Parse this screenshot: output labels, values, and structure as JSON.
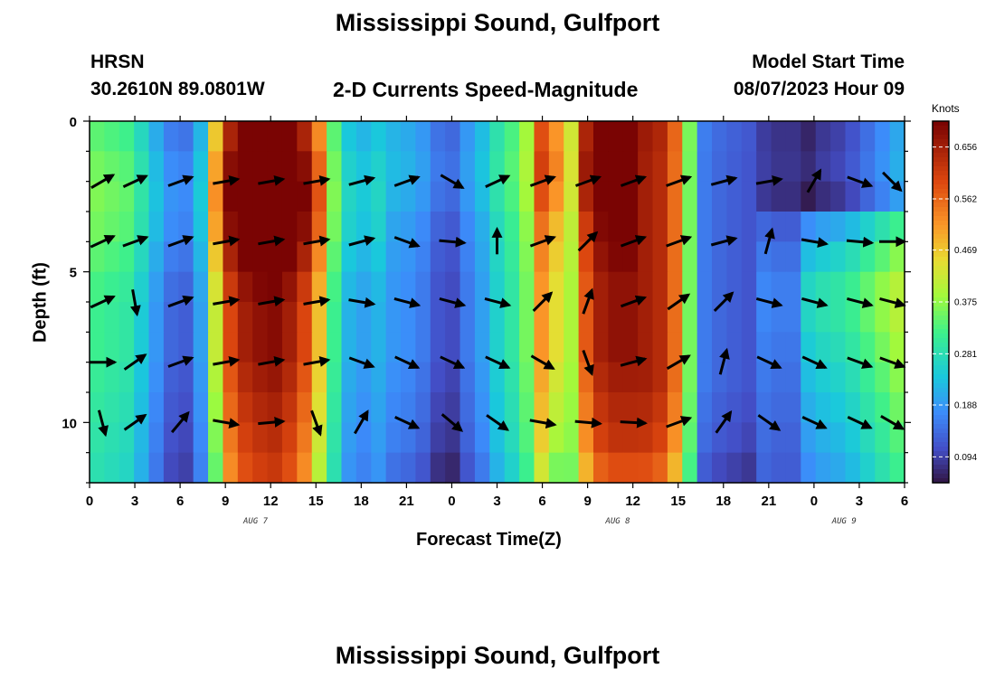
{
  "header": {
    "title": "Mississippi Sound, Gulfport",
    "station_id": "HRSN",
    "coords": "30.2610N  89.0801W",
    "subtitle": "2-D Currents Speed-Magnitude",
    "model_label": "Model Start Time",
    "model_time": "08/07/2023 Hour 09",
    "footer_title": "Mississippi Sound, Gulfport"
  },
  "chart_data": {
    "type": "heatmap",
    "title": "Mississippi Sound, Gulfport",
    "subtitle": "2-D Currents Speed-Magnitude",
    "xlabel": "Forecast Time(Z)",
    "ylabel": "Depth (ft)",
    "colorbar_label": "Knots",
    "colorbar_ticks": [
      0.094,
      0.188,
      0.281,
      0.375,
      0.469,
      0.562,
      0.656
    ],
    "colorbar_range": [
      0.047,
      0.703
    ],
    "x_tick_labels": [
      "0",
      "3",
      "6",
      "9",
      "12",
      "15",
      "18",
      "21",
      "0",
      "3",
      "6",
      "9",
      "12",
      "15",
      "18",
      "21",
      "0",
      "3",
      "6"
    ],
    "x_hours": [
      0,
      54
    ],
    "date_labels": [
      {
        "text": "AUG 7",
        "hour": 11
      },
      {
        "text": "AUG 8",
        "hour": 35
      },
      {
        "text": "AUG 9",
        "hour": 50
      }
    ],
    "y_ticks": [
      0,
      5,
      10
    ],
    "y_range": [
      0,
      12
    ],
    "depths_ft": [
      0,
      1,
      2,
      3,
      4,
      5,
      6,
      7,
      8,
      9,
      10,
      11
    ],
    "hourly_speed_profile": [
      0.32,
      0.31,
      0.3,
      0.25,
      0.19,
      0.14,
      0.13,
      0.2,
      0.42,
      0.6,
      0.66,
      0.68,
      0.69,
      0.66,
      0.6,
      0.48,
      0.32,
      0.22,
      0.2,
      0.22,
      0.19,
      0.18,
      0.16,
      0.12,
      0.11,
      0.16,
      0.2,
      0.26,
      0.3,
      0.36,
      0.52,
      0.45,
      0.4,
      0.58,
      0.66,
      0.68,
      0.68,
      0.66,
      0.64,
      0.56,
      0.36,
      0.16,
      0.14,
      0.13,
      0.12,
      0.11,
      0.1,
      0.1,
      0.11,
      0.13,
      0.14,
      0.16,
      0.19,
      0.22,
      0.25
    ],
    "row_modulation": [
      [
        0.15,
        0.25,
        0.3,
        0.25,
        0.15,
        0.05,
        0.0,
        0.0,
        -0.05,
        -0.1,
        -0.15,
        -0.2
      ],
      [
        0.2,
        0.25,
        0.2,
        0.1,
        0.05,
        0.0,
        0.0,
        0.0,
        -0.05,
        -0.1,
        -0.15,
        -0.25
      ],
      [
        0.02,
        0.0,
        0.0,
        0.0,
        0.0,
        0.0,
        0.0,
        0.0,
        0.0,
        -0.05,
        -0.1,
        -0.2
      ],
      [
        -0.12,
        -0.1,
        -0.15,
        0.2,
        0.35,
        0.45,
        0.45,
        0.4,
        0.35,
        0.3,
        0.25,
        0.2
      ]
    ],
    "arrow_rows_depth": [
      2,
      4,
      6,
      8,
      10
    ],
    "arrow_hours": [
      0,
      3,
      6,
      9,
      12,
      15,
      18,
      21,
      24,
      27,
      30,
      33,
      36,
      39,
      42,
      45,
      48,
      51,
      54
    ],
    "arrow_directions_deg": [
      [
        30,
        25,
        20,
        10,
        10,
        10,
        15,
        20,
        -30,
        25,
        20,
        20,
        20,
        20,
        15,
        10,
        60,
        -20,
        -45
      ],
      [
        25,
        20,
        20,
        10,
        10,
        10,
        15,
        -20,
        -5,
        90,
        20,
        45,
        20,
        20,
        15,
        75,
        -10,
        -5,
        0
      ],
      [
        25,
        -80,
        20,
        10,
        10,
        10,
        -10,
        -15,
        -15,
        -15,
        45,
        70,
        20,
        35,
        45,
        -15,
        -15,
        -15,
        -15
      ],
      [
        0,
        35,
        20,
        10,
        10,
        10,
        -20,
        -25,
        -25,
        -25,
        -30,
        -70,
        15,
        30,
        75,
        -25,
        -25,
        -20,
        -20
      ],
      [
        -75,
        35,
        50,
        -10,
        5,
        -70,
        60,
        -25,
        -40,
        -35,
        -10,
        -5,
        -3,
        20,
        55,
        -35,
        -25,
        -25,
        -30
      ]
    ]
  }
}
